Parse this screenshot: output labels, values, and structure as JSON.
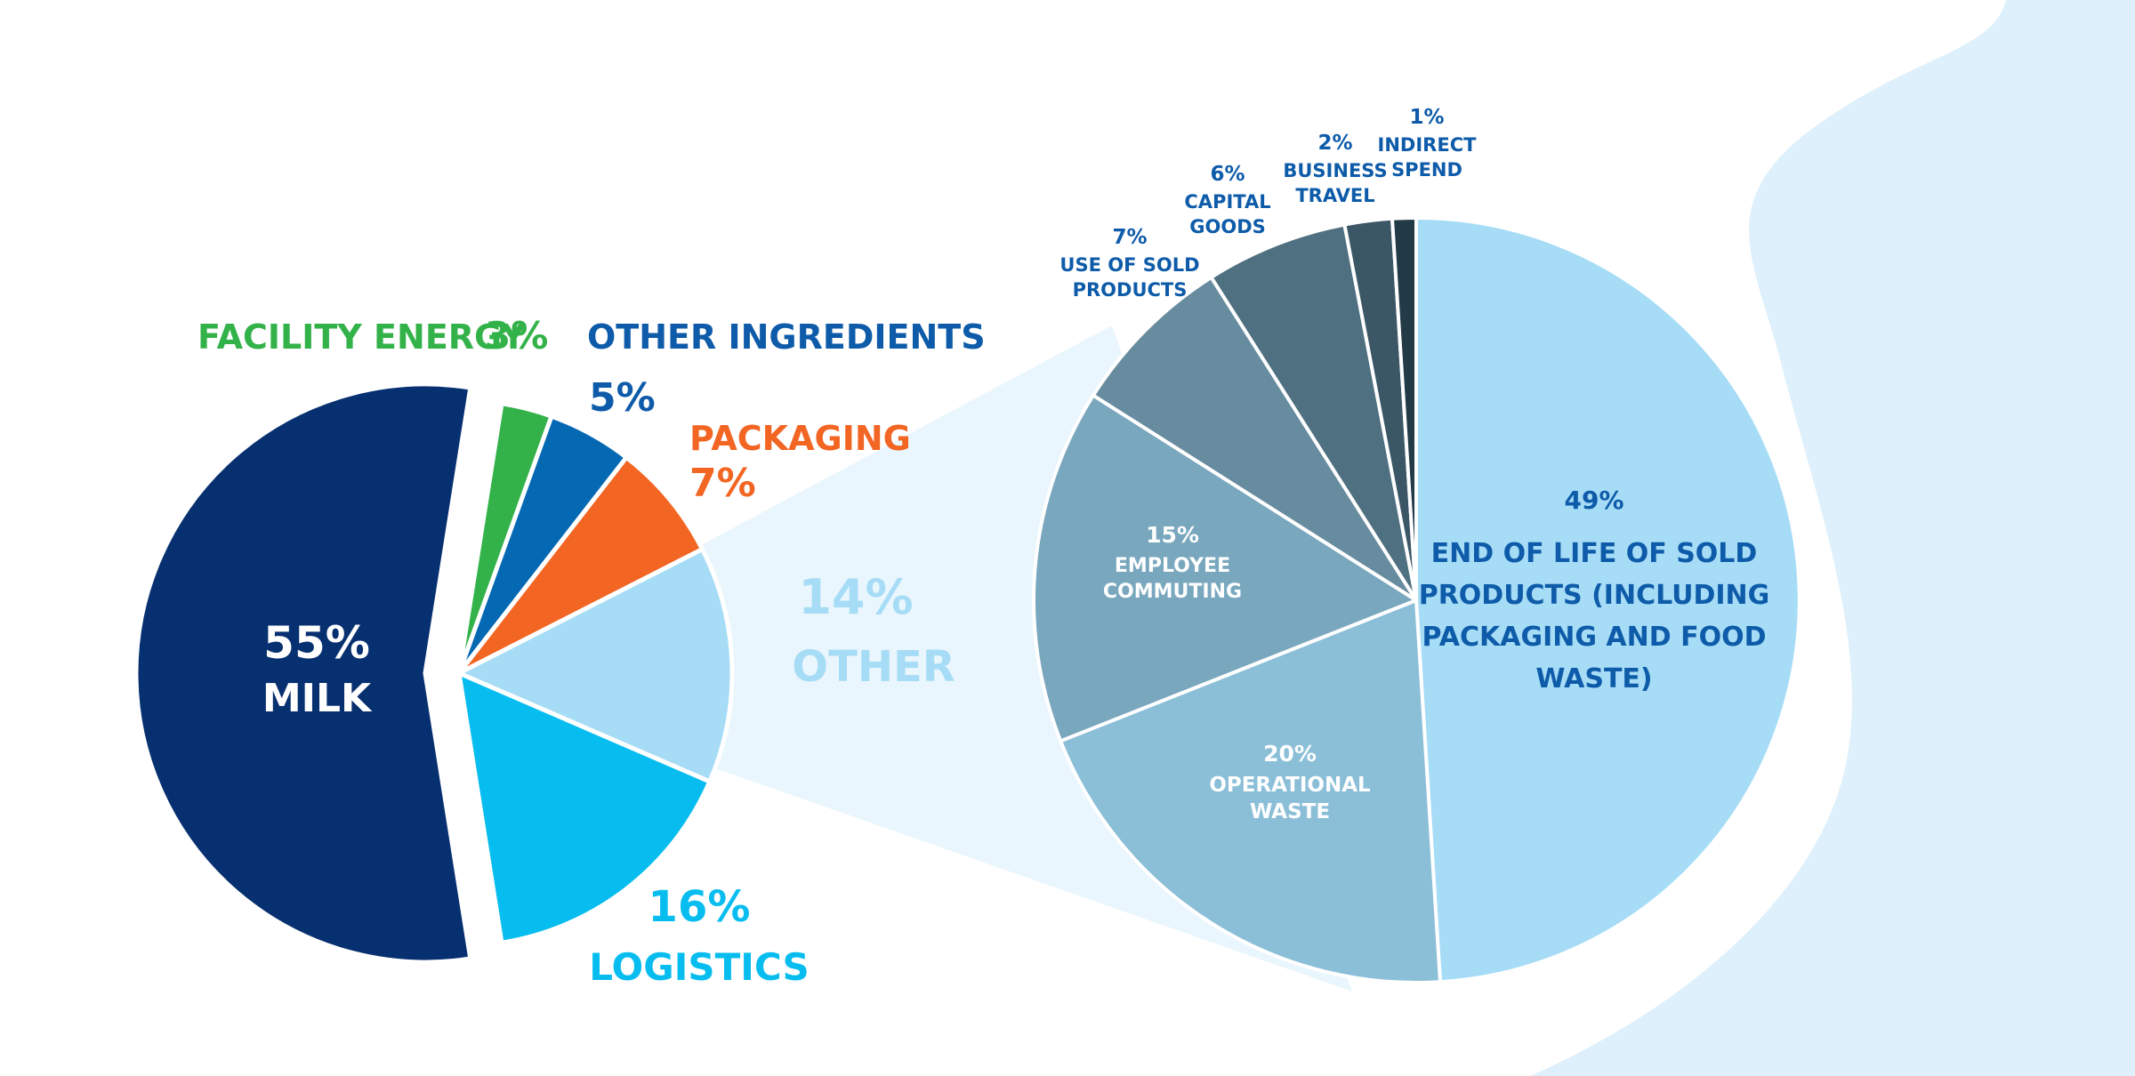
{
  "colors": {
    "background": "#ffffff",
    "backdrop_wave": "#ddf0fb",
    "milk": "#073070",
    "facility_energy": "#33b24a",
    "other_ingredients": "#0568b3",
    "packaging": "#f26522",
    "other": "#a6dcf6",
    "logistics": "#07bdef",
    "label_dark_blue": "#0d5ba9",
    "zoom_band": "#eaf6fd"
  },
  "chart_data": [
    {
      "type": "pie",
      "slices": [
        {
          "key": "facility_energy",
          "value": 3,
          "pct_label": "3%",
          "name": "FACILITY ENERGY",
          "color": "#33b24a",
          "label_color": "#33b24a"
        },
        {
          "key": "other_ingredients",
          "value": 5,
          "pct_label": "5%",
          "name": "OTHER INGREDIENTS",
          "color": "#0568b3",
          "label_color": "#0d5ba9"
        },
        {
          "key": "packaging",
          "value": 7,
          "pct_label": "7%",
          "name": "PACKAGING",
          "color": "#f26522",
          "label_color": "#f26522"
        },
        {
          "key": "other",
          "value": 14,
          "pct_label": "14%",
          "name": "OTHER",
          "color": "#a6dcf6",
          "label_color": "#a6dcf6"
        },
        {
          "key": "logistics",
          "value": 16,
          "pct_label": "16%",
          "name": "LOGISTICS",
          "color": "#07bdef",
          "label_color": "#07bdef"
        },
        {
          "key": "milk",
          "value": 55,
          "pct_label": "55%",
          "name": "MILK",
          "color": "#073070",
          "label_color": "#ffffff"
        }
      ]
    },
    {
      "type": "pie",
      "breakdown_of": "OTHER",
      "slices": [
        {
          "key": "end_of_life",
          "value": 49,
          "pct_label": "49%",
          "name_lines": [
            "END OF LIFE OF SOLD",
            "PRODUCTS (INCLUDING",
            "PACKAGING AND FOOD",
            "WASTE)"
          ],
          "color": "#a6dcf6",
          "label_color": "#0d5ba9"
        },
        {
          "key": "operational_waste",
          "value": 20,
          "pct_label": "20%",
          "name_lines": [
            "OPERATIONAL",
            "WASTE"
          ],
          "color": "#8bbfd8",
          "label_color": "#ffffff"
        },
        {
          "key": "employee_commuting",
          "value": 15,
          "pct_label": "15%",
          "name_lines": [
            "EMPLOYEE",
            "COMMUTING"
          ],
          "color": "#79a7be",
          "label_color": "#ffffff"
        },
        {
          "key": "use_of_sold_products",
          "value": 7,
          "pct_label": "7%",
          "name_lines": [
            "USE OF SOLD",
            "PRODUCTS"
          ],
          "color": "#678c9f",
          "label_color": "#0d5ba9"
        },
        {
          "key": "capital_goods",
          "value": 6,
          "pct_label": "6%",
          "name_lines": [
            "CAPITAL",
            "GOODS"
          ],
          "color": "#4f7080",
          "label_color": "#0d5ba9"
        },
        {
          "key": "business_travel",
          "value": 2,
          "pct_label": "2%",
          "name_lines": [
            "BUSINESS",
            "TRAVEL"
          ],
          "color": "#3b5766",
          "label_color": "#0d5ba9"
        },
        {
          "key": "indirect_spend",
          "value": 1,
          "pct_label": "1%",
          "name_lines": [
            "INDIRECT",
            "SPEND"
          ],
          "color": "#233a47",
          "label_color": "#0d5ba9"
        }
      ]
    }
  ]
}
